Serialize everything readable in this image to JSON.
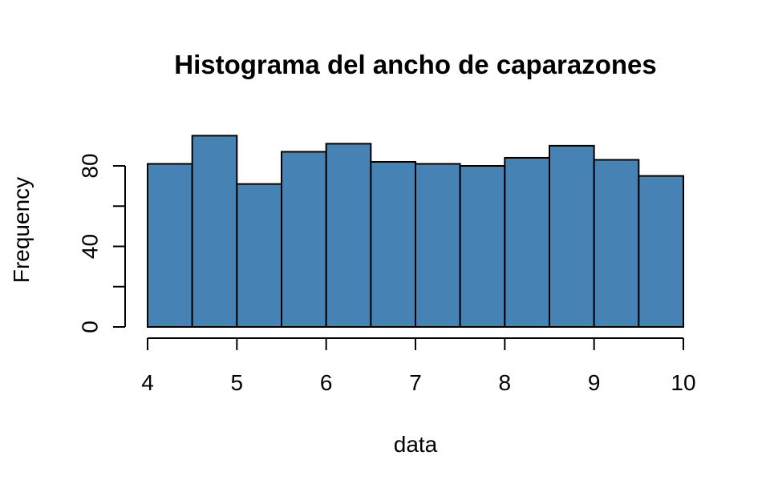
{
  "chart_data": {
    "type": "bar",
    "title": "Histograma del ancho de caparazones",
    "xlabel": "data",
    "ylabel": "Frequency",
    "bin_edges": [
      4,
      4.5,
      5,
      5.5,
      6,
      6.5,
      7,
      7.5,
      8,
      8.5,
      9,
      9.5,
      10
    ],
    "values": [
      81,
      95,
      71,
      87,
      91,
      82,
      81,
      80,
      84,
      90,
      83,
      75
    ],
    "xlim": [
      4,
      10
    ],
    "ylim": [
      0,
      95
    ],
    "x_ticks": [
      4,
      5,
      6,
      7,
      8,
      9,
      10
    ],
    "x_tick_labels": [
      "4",
      "5",
      "6",
      "7",
      "8",
      "9",
      "10"
    ],
    "y_ticks": [
      0,
      20,
      40,
      60,
      80
    ],
    "y_tick_labels": [
      "0",
      "",
      "40",
      "",
      "80"
    ],
    "grid": false,
    "legend": "none",
    "bar_color": "#4682B4",
    "edge_color": "#000000"
  }
}
